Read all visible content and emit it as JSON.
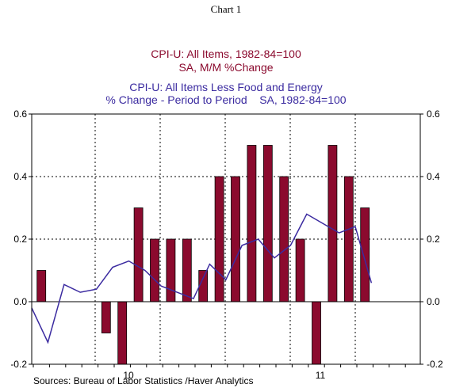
{
  "header": {
    "chart_label": "Chart 1",
    "series1_line1": "CPI-U: All Items, 1982-84=100",
    "series1_line2": "SA, M/M %Change",
    "series2_line1": "CPI-U: All Items Less Food and Energy",
    "series2_line2": "% Change - Period to Period    SA, 1982-84=100"
  },
  "footer": {
    "source": "Sources:  Bureau of Labor Statistics /Haver Analytics"
  },
  "colors": {
    "bar": "#8b0a2e",
    "line": "#3b2ba0"
  },
  "chart_data": {
    "type": "bar",
    "x_labels": [
      "10",
      "11"
    ],
    "y_tick_labels": [
      "0.6",
      "0.4",
      "0.2",
      "0.0",
      "-0.2"
    ],
    "ylim": [
      -0.2,
      0.6
    ],
    "grid": true,
    "series": [
      {
        "name": "CPI-U: All Items, 1982-84=100",
        "type": "bar",
        "values": [
          0.1,
          null,
          null,
          null,
          -0.1,
          -0.2,
          0.3,
          0.2,
          0.2,
          0.2,
          0.1,
          0.4,
          0.4,
          0.5,
          0.5,
          0.4,
          0.2,
          -0.2,
          0.5,
          0.4,
          0.3
        ]
      },
      {
        "name": "CPI-U: All Items Less Food and Energy",
        "type": "line",
        "values": [
          -0.02,
          -0.13,
          0.055,
          0.03,
          0.04,
          0.11,
          0.13,
          0.1,
          0.05,
          0.03,
          0.01,
          0.12,
          0.07,
          0.18,
          0.2,
          0.14,
          0.18,
          0.28,
          0.25,
          0.22,
          0.24,
          0.06
        ]
      }
    ]
  }
}
